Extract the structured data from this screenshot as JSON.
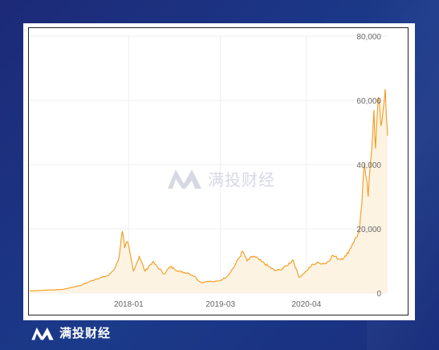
{
  "brand": {
    "name": "满投财经",
    "watermark": "满投财经"
  },
  "colors": {
    "line": "#f29a1a",
    "fill": "#fdf3e3",
    "grid": "#efefef",
    "tick": "#666666"
  },
  "chart_data": {
    "type": "line",
    "title": "",
    "xlabel": "",
    "ylabel": "",
    "ylim": [
      0,
      80000
    ],
    "y_axis_side": "right",
    "grid": true,
    "y_ticks": [
      "80,000",
      "60,000",
      "40,000",
      "20,000",
      "0"
    ],
    "x_ticks": [
      "2018-01",
      "2019-03",
      "2020-04"
    ],
    "series": [
      {
        "points": [
          [
            "2016-10",
            650
          ],
          [
            "2017-01",
            950
          ],
          [
            "2017-03",
            1100
          ],
          [
            "2017-05",
            2000
          ],
          [
            "2017-06",
            2600
          ],
          [
            "2017-08",
            4300
          ],
          [
            "2017-10",
            5500
          ],
          [
            "2017-11",
            8000
          ],
          [
            "2017-12-01",
            11000
          ],
          [
            "2017-12-17",
            19300
          ],
          [
            "2017-12-28",
            14000
          ],
          [
            "2018-01-10",
            16000
          ],
          [
            "2018-02-06",
            6900
          ],
          [
            "2018-03-05",
            11400
          ],
          [
            "2018-04-01",
            6800
          ],
          [
            "2018-05-05",
            9700
          ],
          [
            "2018-06-29",
            5900
          ],
          [
            "2018-07-25",
            8200
          ],
          [
            "2018-09",
            6500
          ],
          [
            "2018-10",
            6300
          ],
          [
            "2018-11-15",
            5200
          ],
          [
            "2018-12-15",
            3200
          ],
          [
            "2019-01",
            3700
          ],
          [
            "2019-02",
            3500
          ],
          [
            "2019-03",
            3900
          ],
          [
            "2019-04",
            5200
          ],
          [
            "2019-05",
            8000
          ],
          [
            "2019-06-26",
            13000
          ],
          [
            "2019-07-15",
            10000
          ],
          [
            "2019-08",
            11500
          ],
          [
            "2019-09-20",
            9800
          ],
          [
            "2019-10-25",
            8200
          ],
          [
            "2019-11-20",
            7000
          ],
          [
            "2019-12",
            7200
          ],
          [
            "2020-01",
            8500
          ],
          [
            "2020-02-13",
            10300
          ],
          [
            "2020-03-12",
            4900
          ],
          [
            "2020-04",
            6800
          ],
          [
            "2020-05",
            9000
          ],
          [
            "2020-06",
            9400
          ],
          [
            "2020-07",
            9200
          ],
          [
            "2020-08",
            11700
          ],
          [
            "2020-09",
            10500
          ],
          [
            "2020-10",
            11500
          ],
          [
            "2020-11",
            15500
          ],
          [
            "2020-12",
            19000
          ],
          [
            "2020-12-27",
            28000
          ],
          [
            "2021-01-08",
            40500
          ],
          [
            "2021-01-25",
            30000
          ],
          [
            "2021-02-21",
            57000
          ],
          [
            "2021-02-28",
            45000
          ],
          [
            "2021-03-13",
            61000
          ],
          [
            "2021-03-25",
            52000
          ],
          [
            "2021-04-14",
            63500
          ],
          [
            "2021-04-25",
            49000
          ]
        ]
      }
    ]
  }
}
